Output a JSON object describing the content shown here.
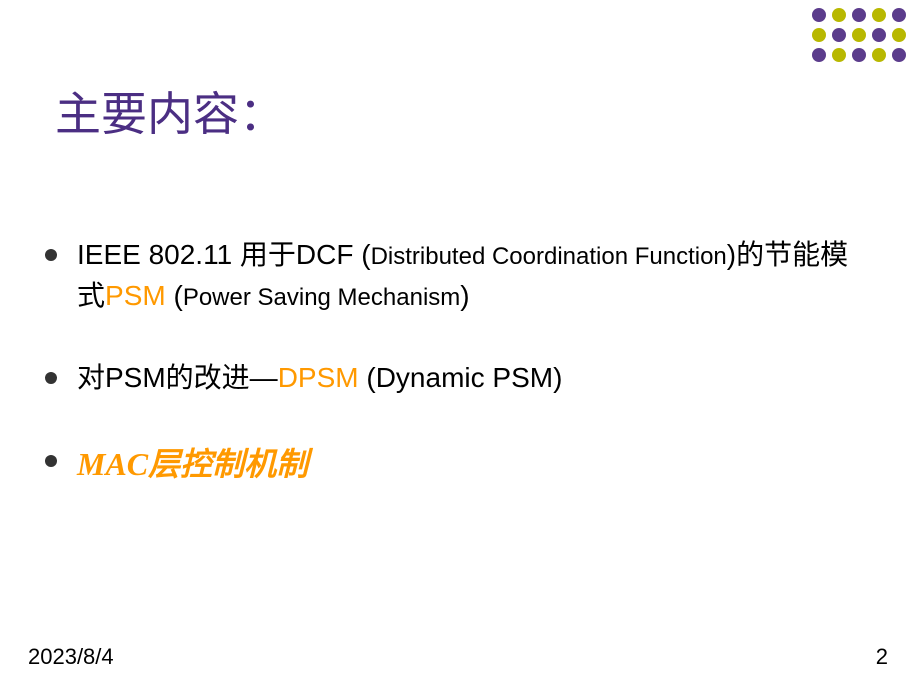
{
  "title": "主要内容：",
  "title_color": "#4b2e83",
  "title_fontsize": 46,
  "bullets": [
    {
      "parts": [
        {
          "text": "IEEE 802.11 用于DCF (",
          "style": "normal"
        },
        {
          "text": "Distributed Coordination Function",
          "style": "small"
        },
        {
          "text": ")的节能模式",
          "style": "normal"
        },
        {
          "text": "PSM",
          "style": "orange"
        },
        {
          "text": " (",
          "style": "normal"
        },
        {
          "text": "Power Saving Mechanism",
          "style": "small"
        },
        {
          "text": ")",
          "style": "normal"
        }
      ]
    },
    {
      "parts": [
        {
          "text": "对PSM的改进—",
          "style": "normal"
        },
        {
          "text": "DPSM",
          "style": "orange"
        },
        {
          "text": " (Dynamic PSM)",
          "style": "normal"
        }
      ]
    },
    {
      "parts": [
        {
          "text": "MAC层控制机制",
          "style": "orange-bold"
        }
      ]
    }
  ],
  "decoration": {
    "rows": 3,
    "cols": 5,
    "colors_row1": [
      "#5b3c8c",
      "#b8b800",
      "#5b3c8c",
      "#b8b800",
      "#5b3c8c"
    ],
    "colors_row2": [
      "#b8b800",
      "#5b3c8c",
      "#b8b800",
      "#5b3c8c",
      "#b8b800"
    ],
    "colors_row3": [
      "#5b3c8c",
      "#b8b800",
      "#5b3c8c",
      "#b8b800",
      "#5b3c8c"
    ],
    "dot_size": 14
  },
  "footer": {
    "date": "2023/8/4",
    "page": "2"
  },
  "colors": {
    "background": "#ffffff",
    "text": "#000000",
    "highlight": "#ff9900",
    "bullet": "#333333"
  }
}
